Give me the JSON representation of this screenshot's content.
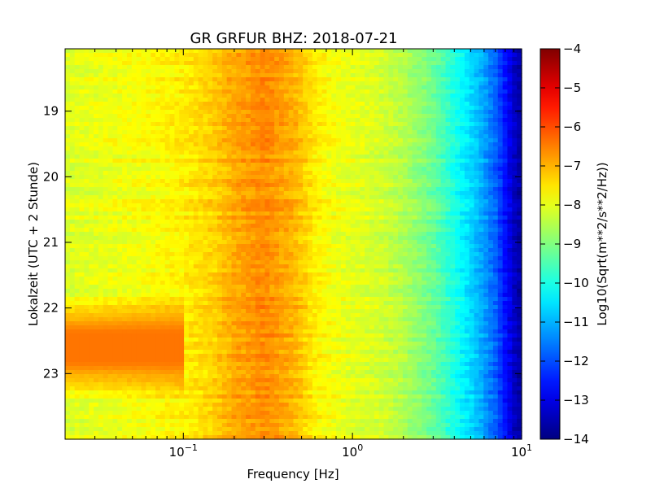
{
  "chart_data": {
    "type": "heatmap",
    "title": "GR GRFUR BHZ: 2018-07-21",
    "xlabel": "Frequency [Hz]",
    "ylabel": "Lokalzeit (UTC + 2 Stunde)",
    "x_scale": "log",
    "xlim": [
      0.02,
      10
    ],
    "ylim": [
      24,
      18.05
    ],
    "x_ticks": [
      {
        "value": 0.1,
        "base": "10",
        "exp": "−1"
      },
      {
        "value": 1,
        "base": "10",
        "exp": "0"
      },
      {
        "value": 10,
        "base": "10",
        "exp": "1"
      }
    ],
    "y_ticks": [
      "19",
      "20",
      "21",
      "22",
      "23"
    ],
    "colorbar": {
      "label": "Log10(Sqrt(m**2/s**2/Hz))",
      "range": [
        -14,
        -4
      ],
      "ticks": [
        "−4",
        "−5",
        "−6",
        "−7",
        "−8",
        "−9",
        "−10",
        "−11",
        "−12",
        "−13",
        "−14"
      ],
      "colormap": "jet"
    },
    "frequency_profile_hz": [
      [
        0.02,
        -8.1
      ],
      [
        0.04,
        -7.9
      ],
      [
        0.06,
        -7.8
      ],
      [
        0.1,
        -7.6
      ],
      [
        0.15,
        -7.3
      ],
      [
        0.2,
        -6.9
      ],
      [
        0.3,
        -6.6
      ],
      [
        0.45,
        -7.0
      ],
      [
        0.6,
        -7.6
      ],
      [
        0.8,
        -7.9
      ],
      [
        1.0,
        -8.0
      ],
      [
        1.5,
        -8.2
      ],
      [
        2.0,
        -8.5
      ],
      [
        3.0,
        -9.2
      ],
      [
        4.0,
        -10.0
      ],
      [
        5.0,
        -10.6
      ],
      [
        6.0,
        -11.2
      ],
      [
        7.0,
        -11.8
      ],
      [
        8.0,
        -12.6
      ],
      [
        9.0,
        -13.3
      ],
      [
        10.0,
        -13.7
      ]
    ],
    "notable_features": [
      {
        "time_range": [
          21.8,
          23.4
        ],
        "freq_range_hz": [
          0.02,
          0.1
        ],
        "value": -6.4,
        "note": "elevated low-frequency energy"
      }
    ]
  }
}
